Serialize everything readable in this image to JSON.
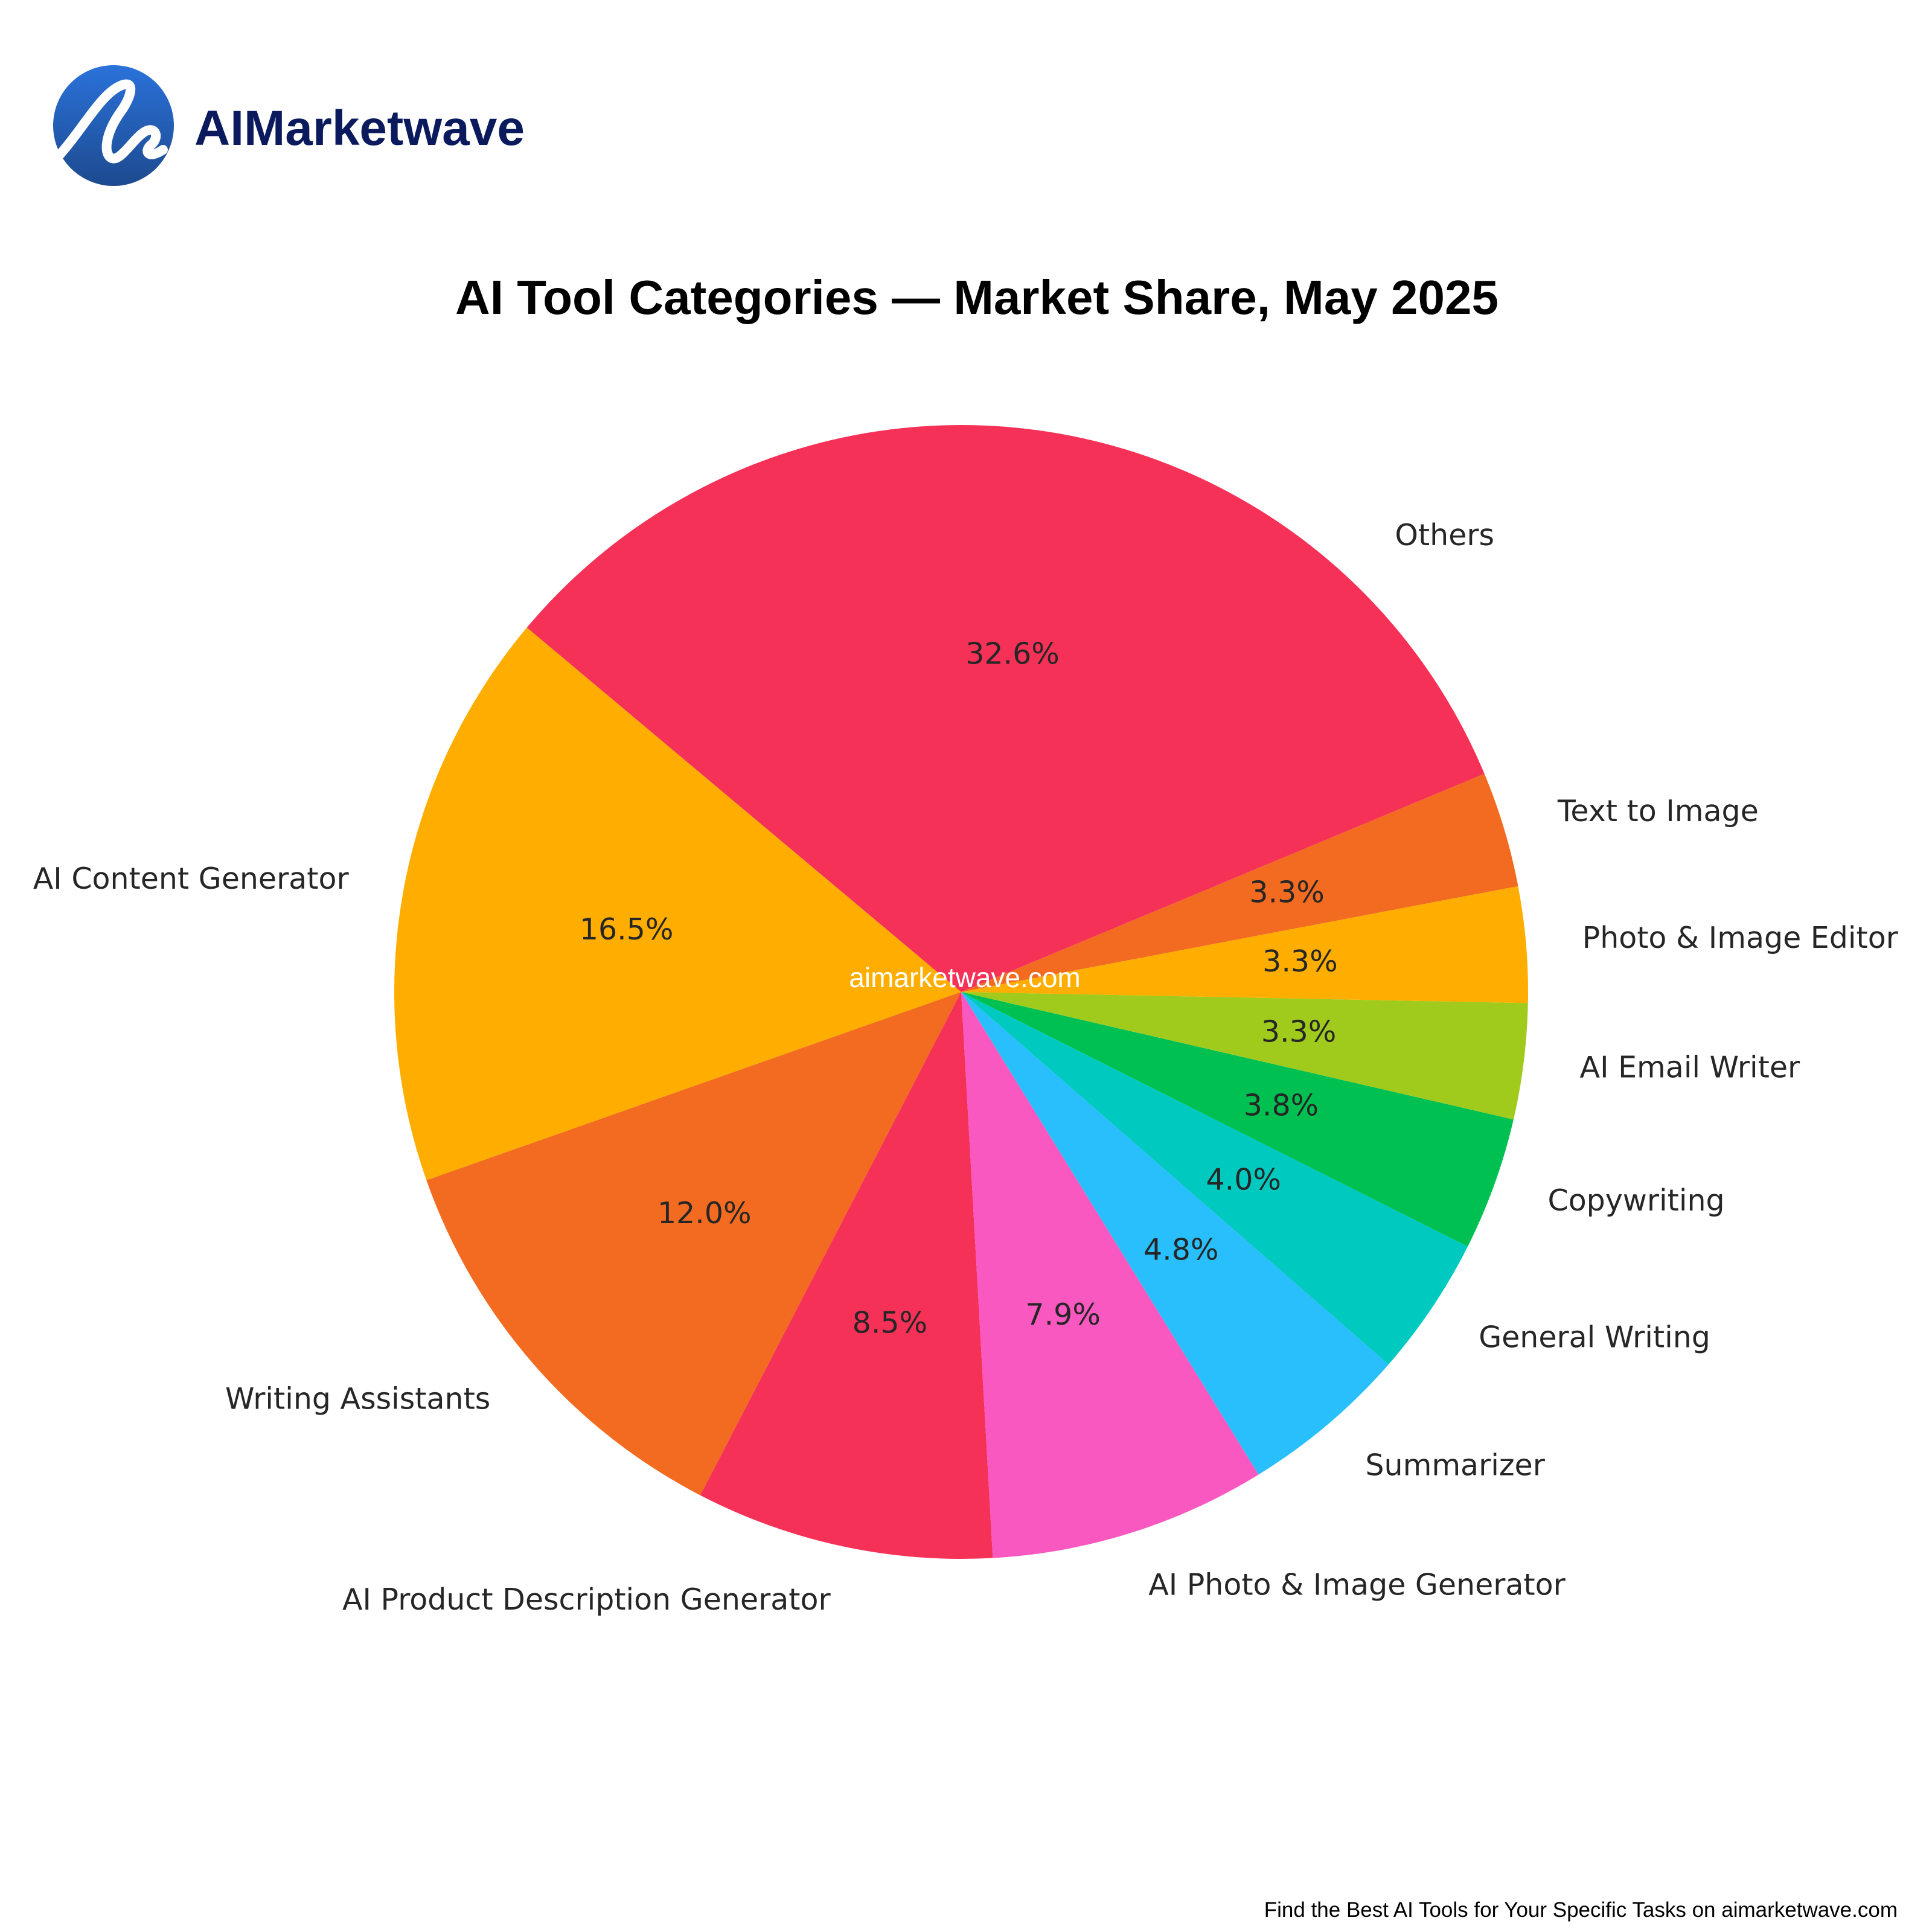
{
  "brand": {
    "name": "AIMarketwave",
    "logo_icon": "wave-logo-icon",
    "color": "#0B1A5C"
  },
  "watermark": "aimarketwave.com",
  "footer": "Find the Best AI Tools for Your Specific Tasks on aimarketwave.com",
  "chart_data": {
    "type": "pie",
    "title": "AI Tool Categories — Market Share, May 2025",
    "start_angle_deg": 140,
    "direction": "counterclockwise",
    "slices": [
      {
        "label": "AI Content Generator",
        "value": 16.5,
        "pct_label": "16.5%",
        "color": "#FFAE00"
      },
      {
        "label": "Writing Assistants",
        "value": 12.0,
        "pct_label": "12.0%",
        "color": "#F26B21"
      },
      {
        "label": "AI Product Description Generator",
        "value": 8.5,
        "pct_label": "8.5%",
        "color": "#F53157"
      },
      {
        "label": "AI Photo & Image Generator",
        "value": 7.9,
        "pct_label": "7.9%",
        "color": "#F958C0"
      },
      {
        "label": "Summarizer",
        "value": 4.8,
        "pct_label": "4.8%",
        "color": "#29BFFC"
      },
      {
        "label": "General Writing",
        "value": 4.0,
        "pct_label": "4.0%",
        "color": "#00C9C0"
      },
      {
        "label": "Copywriting",
        "value": 3.8,
        "pct_label": "3.8%",
        "color": "#00C051"
      },
      {
        "label": "AI Email Writer",
        "value": 3.3,
        "pct_label": "3.3%",
        "color": "#A0CB1C"
      },
      {
        "label": "Photo & Image Editor",
        "value": 3.3,
        "pct_label": "3.3%",
        "color": "#FFAE00"
      },
      {
        "label": "Text to Image",
        "value": 3.3,
        "pct_label": "3.3%",
        "color": "#F26B21"
      },
      {
        "label": "Others",
        "value": 32.6,
        "pct_label": "32.6%",
        "color": "#F53157"
      }
    ]
  }
}
